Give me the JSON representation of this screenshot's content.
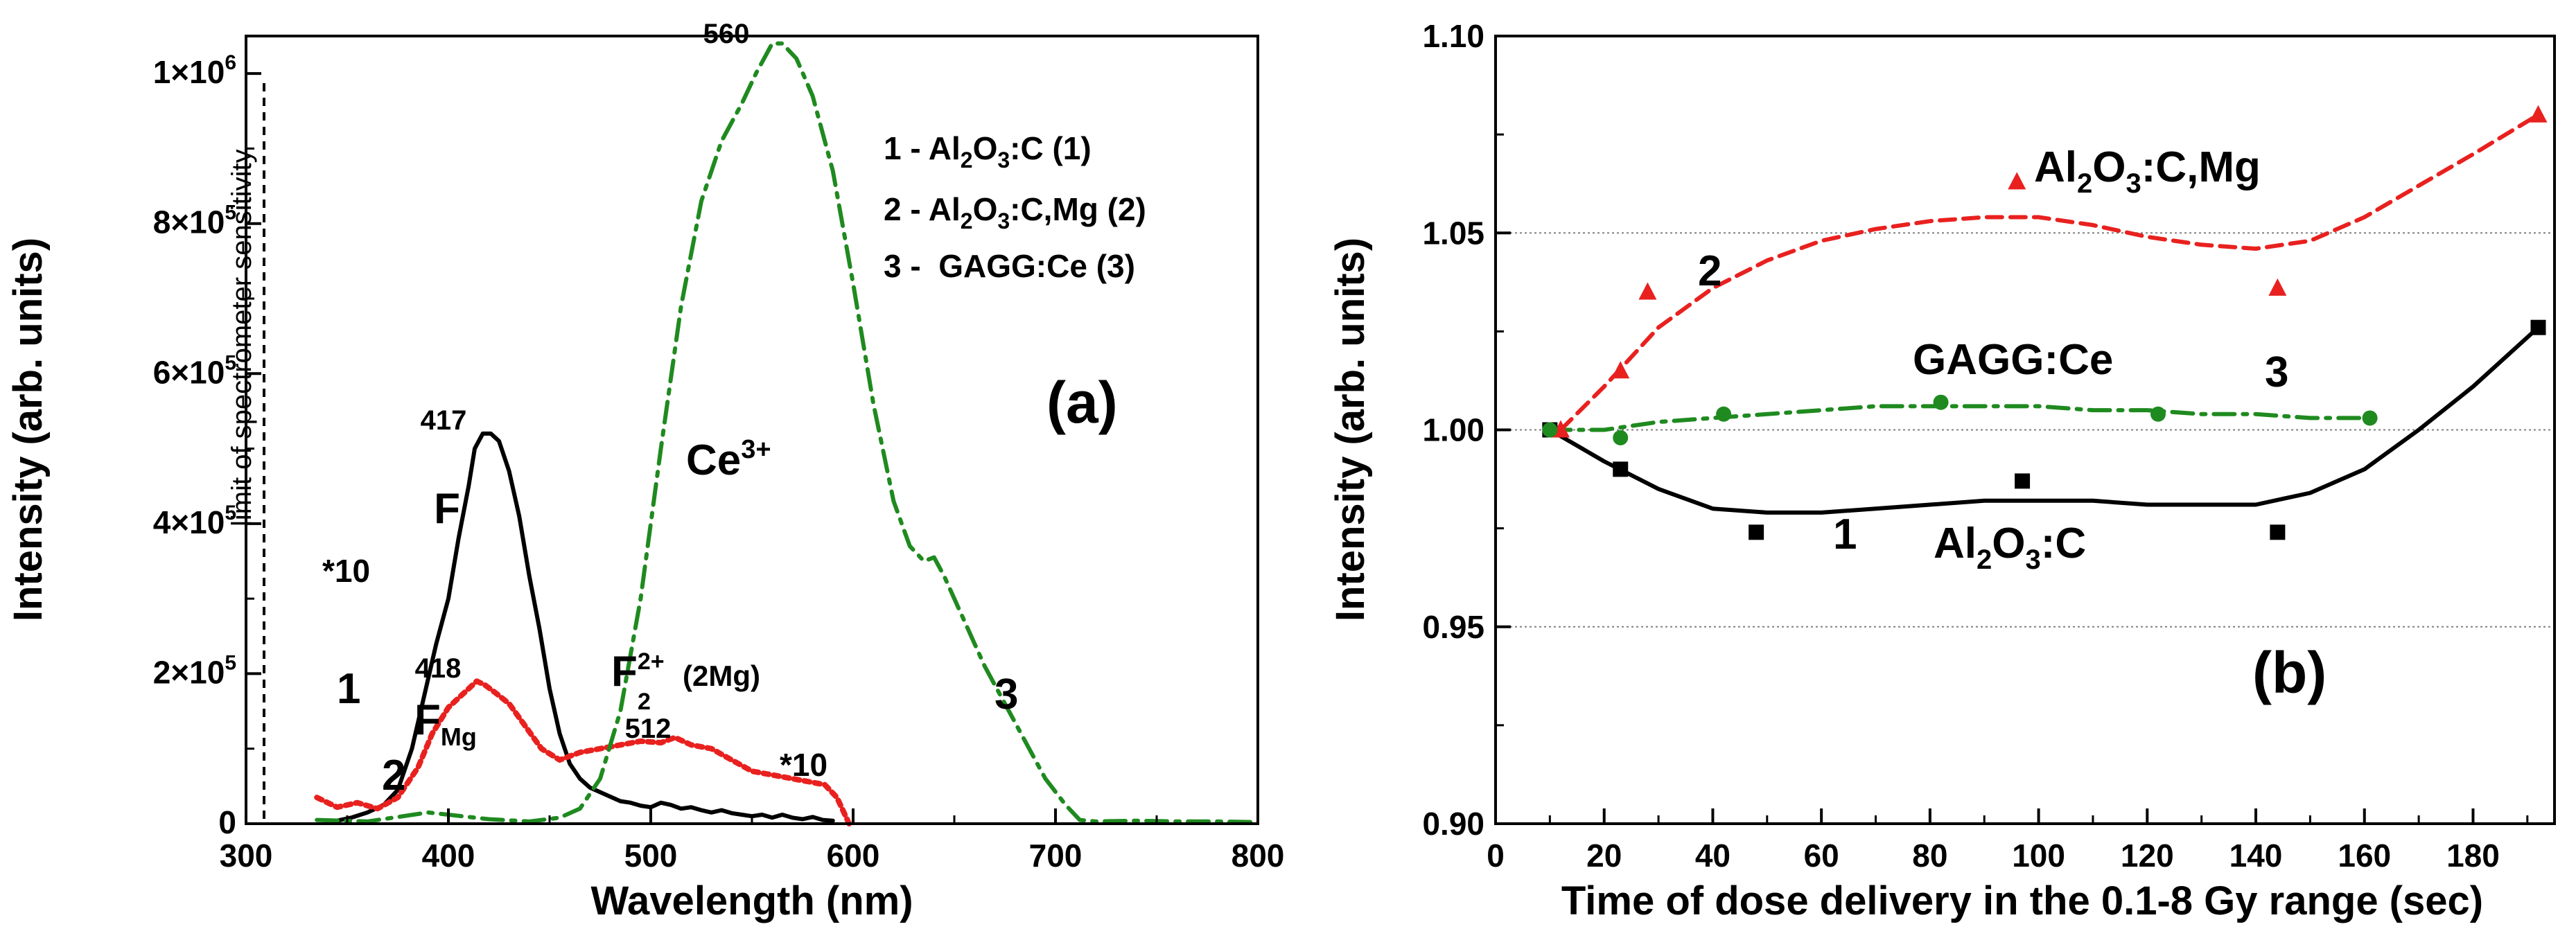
{
  "colors": {
    "curve1": "#000000",
    "curve2": "#e8211f",
    "curve3": "#1f8a1f",
    "grid": "#808080"
  },
  "chart_data": [
    {
      "panel": "(a)",
      "type": "line",
      "xlabel": "Wavelength (nm)",
      "ylabel": "Intensity (arb. units)",
      "xlim": [
        300,
        800
      ],
      "ylim": [
        0,
        1050000
      ],
      "x_ticks": [
        "300",
        "400",
        "500",
        "600",
        "700",
        "800"
      ],
      "y_ticks": [
        {
          "mantissa": "0",
          "exp": ""
        },
        {
          "mantissa": "2×10",
          "exp": "5"
        },
        {
          "mantissa": "4×10",
          "exp": "5"
        },
        {
          "mantissa": "6×10",
          "exp": "5"
        },
        {
          "mantissa": "8×10",
          "exp": "5"
        },
        {
          "mantissa": "1×10",
          "exp": "6"
        }
      ],
      "legend": [
        {
          "num": "1 - ",
          "base": "Al",
          "sub1": "2",
          "mid": "O",
          "sub2": "3",
          "tail": ":C (1)"
        },
        {
          "num": "2 - ",
          "base": "Al",
          "sub1": "2",
          "mid": "O",
          "sub2": "3",
          "tail": ":C,Mg (2)"
        },
        {
          "num": "3 -  ",
          "base": "GAGG:Ce (3)",
          "sub1": "",
          "mid": "",
          "sub2": "",
          "tail": ""
        }
      ],
      "vline": {
        "x": 335,
        "label": "limit of spectrometer sensitivity"
      },
      "annotations": {
        "peak417": "417",
        "peak418": "418",
        "peak560": "560",
        "peak512": "512",
        "F": "F",
        "Fmg_main": "F",
        "Fmg_sub": "Mg",
        "F2_main": "F",
        "F2_sub": "2",
        "F2_sup": "2+",
        "F2_tail": "(2Mg)",
        "ce_main": "Ce",
        "ce_sup": "3+",
        "times10_a": "*10",
        "times10_b": "*10",
        "curve1_label": "1",
        "curve2_label": "2",
        "curve3_label": "3",
        "panel_label": "(a)"
      },
      "series": [
        {
          "name": "1 - Al2O3:C (1)",
          "color": "#000000",
          "style": "solid",
          "x": [
            345,
            352,
            360,
            368,
            375,
            382,
            388,
            394,
            400,
            405,
            410,
            413,
            417,
            421,
            425,
            430,
            435,
            440,
            445,
            450,
            455,
            460,
            465,
            470,
            475,
            480,
            485,
            490,
            495,
            500,
            505,
            510,
            515,
            520,
            525,
            530,
            535,
            540,
            545,
            550,
            555,
            560,
            565,
            570,
            575,
            580,
            585,
            590
          ],
          "y": [
            4000,
            8000,
            15000,
            25000,
            45000,
            100000,
            170000,
            240000,
            300000,
            380000,
            450000,
            500000,
            520000,
            520000,
            510000,
            470000,
            410000,
            330000,
            260000,
            180000,
            120000,
            80000,
            60000,
            48000,
            42000,
            36000,
            30000,
            28000,
            24000,
            22000,
            28000,
            25000,
            20000,
            22000,
            18000,
            15000,
            18000,
            14000,
            12000,
            10000,
            12000,
            8000,
            12000,
            8000,
            6000,
            9000,
            5000,
            4000
          ]
        },
        {
          "name": "2 - Al2O3:C,Mg (2)",
          "color": "#e8211f",
          "style": "dotted",
          "x": [
            335,
            345,
            355,
            365,
            375,
            385,
            392,
            400,
            408,
            414,
            418,
            423,
            430,
            438,
            446,
            455,
            465,
            475,
            485,
            495,
            505,
            512,
            520,
            530,
            540,
            550,
            560,
            570,
            580,
            586,
            592,
            598
          ],
          "y": [
            35000,
            22000,
            28000,
            20000,
            35000,
            75000,
            120000,
            155000,
            175000,
            190000,
            185000,
            175000,
            160000,
            130000,
            100000,
            85000,
            95000,
            100000,
            105000,
            110000,
            108000,
            115000,
            105000,
            100000,
            85000,
            70000,
            65000,
            60000,
            55000,
            52000,
            35000,
            0
          ]
        },
        {
          "name": "3 - GAGG:Ce (3)",
          "color": "#1f8a1f",
          "style": "dashdot",
          "x": [
            335,
            360,
            390,
            420,
            440,
            455,
            465,
            475,
            485,
            495,
            505,
            515,
            525,
            535,
            545,
            552,
            556,
            560,
            565,
            572,
            580,
            590,
            600,
            610,
            620,
            628,
            635,
            640,
            645,
            655,
            665,
            675,
            685,
            695,
            705,
            712,
            720,
            740,
            760,
            780,
            800
          ],
          "y": [
            5000,
            3000,
            15000,
            6000,
            3000,
            8000,
            20000,
            60000,
            150000,
            300000,
            500000,
            690000,
            830000,
            910000,
            960000,
            1000000,
            1020000,
            1040000,
            1040000,
            1020000,
            970000,
            870000,
            720000,
            560000,
            430000,
            370000,
            350000,
            355000,
            330000,
            270000,
            210000,
            160000,
            110000,
            60000,
            25000,
            5000,
            3000,
            4000,
            3000,
            3000,
            2000
          ]
        }
      ]
    },
    {
      "panel": "(b)",
      "type": "scatter",
      "xlabel": "Time of dose delivery in the 0.1-8 Gy range (sec)",
      "ylabel": "Intensity (arb. units)",
      "xlim": [
        0,
        195
      ],
      "ylim": [
        0.9,
        1.1
      ],
      "x_ticks": [
        "0",
        "20",
        "40",
        "60",
        "80",
        "100",
        "120",
        "140",
        "160",
        "180"
      ],
      "y_ticks": [
        "0.90",
        "0.95",
        "1.00",
        "1.05",
        "1.10"
      ],
      "grid_y": [
        0.95,
        1.0,
        1.05
      ],
      "annotations": {
        "al2o3c_mg_base": "Al",
        "al2o3c_mg_sub1": "2",
        "al2o3c_mg_mid": "O",
        "al2o3c_mg_sub2": "3",
        "al2o3c_mg_tail": ":C,Mg",
        "al2o3c_base": "Al",
        "al2o3c_sub1": "2",
        "al2o3c_mid": "O",
        "al2o3c_sub2": "3",
        "al2o3c_tail": ":C",
        "gagg": "GAGG:Ce",
        "curve1_label": "1",
        "curve2_label": "2",
        "curve3_label": "3",
        "panel_label": "(b)"
      },
      "series": [
        {
          "name": "Al2O3:C",
          "color": "#000000",
          "marker": "square",
          "points_x": [
            10,
            23,
            48,
            97,
            144,
            192
          ],
          "points_y": [
            1.0,
            0.99,
            0.974,
            0.987,
            0.974,
            1.026
          ],
          "fit_x": [
            10,
            20,
            30,
            40,
            50,
            60,
            70,
            80,
            90,
            100,
            110,
            120,
            130,
            140,
            150,
            160,
            170,
            180,
            192
          ],
          "fit_y": [
            1.0,
            0.992,
            0.985,
            0.98,
            0.979,
            0.979,
            0.98,
            0.981,
            0.982,
            0.982,
            0.982,
            0.981,
            0.981,
            0.981,
            0.984,
            0.99,
            1.0,
            1.011,
            1.026
          ]
        },
        {
          "name": "Al2O3:C,Mg",
          "color": "#e8211f",
          "marker": "triangle",
          "points_x": [
            12,
            23,
            28,
            96,
            144,
            192
          ],
          "points_y": [
            1.0,
            1.015,
            1.035,
            1.063,
            1.036,
            1.08
          ],
          "fit_x": [
            12,
            20,
            30,
            40,
            50,
            60,
            70,
            80,
            90,
            100,
            110,
            120,
            130,
            140,
            150,
            160,
            170,
            180,
            192
          ],
          "fit_y": [
            1.0,
            1.011,
            1.026,
            1.036,
            1.043,
            1.048,
            1.051,
            1.053,
            1.054,
            1.054,
            1.052,
            1.049,
            1.047,
            1.046,
            1.048,
            1.054,
            1.062,
            1.07,
            1.08
          ]
        },
        {
          "name": "GAGG:Ce",
          "color": "#1f8a1f",
          "marker": "circle",
          "points_x": [
            10,
            23,
            42,
            82,
            122,
            161
          ],
          "points_y": [
            1.0,
            0.998,
            1.004,
            1.007,
            1.004,
            1.003
          ],
          "fit_x": [
            10,
            20,
            30,
            40,
            50,
            60,
            70,
            80,
            90,
            100,
            110,
            120,
            130,
            140,
            150,
            161
          ],
          "fit_y": [
            1.0,
            1.0,
            1.002,
            1.003,
            1.004,
            1.005,
            1.006,
            1.006,
            1.006,
            1.006,
            1.005,
            1.005,
            1.004,
            1.004,
            1.003,
            1.003
          ]
        }
      ]
    }
  ]
}
